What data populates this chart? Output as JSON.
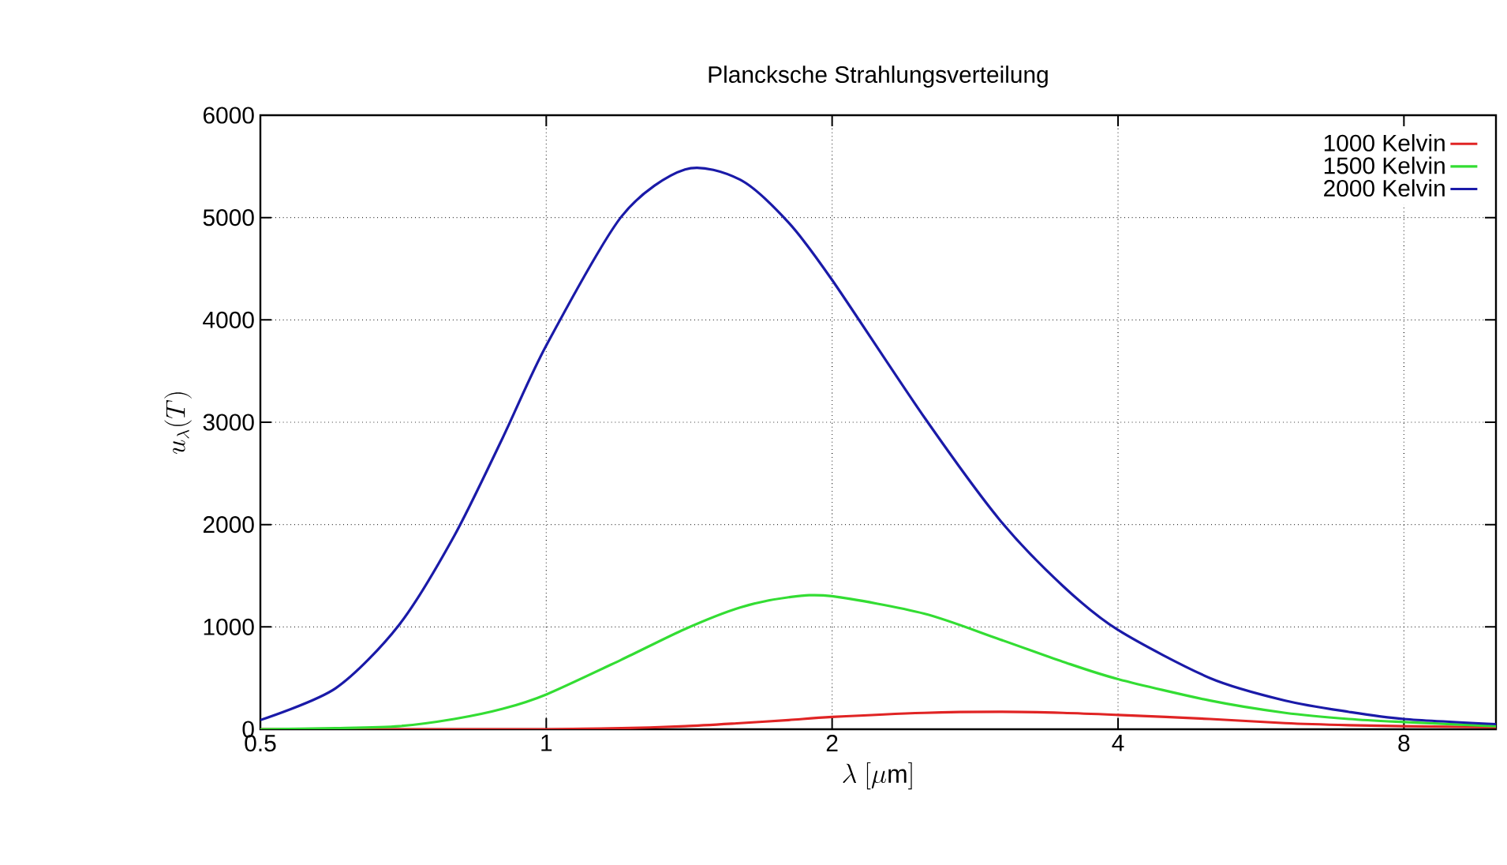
{
  "chart_data": {
    "type": "line",
    "title": "Plancksche Strahlungsverteilung",
    "xlabel": "\\lambda\\ [\\mu\\mathrm{m}]",
    "ylabel": "u_\\lambda(T)",
    "x": [
      0.5,
      0.6,
      0.7,
      0.8,
      0.9,
      1.0,
      1.2,
      1.4,
      1.6,
      1.8,
      2.0,
      2.5,
      3,
      3.5,
      4,
      5,
      6,
      7,
      8,
      10
    ],
    "series": [
      {
        "name": "1000 Kelvin",
        "color": "#e02424",
        "values": [
          0,
          0,
          0,
          0,
          0,
          0,
          10,
          30,
          60,
          90,
          120,
          160,
          170,
          160,
          140,
          100,
          60,
          40,
          30,
          20
        ]
      },
      {
        "name": "1500 Kelvin",
        "color": "#33dd33",
        "values": [
          0,
          10,
          30,
          100,
          200,
          340,
          680,
          980,
          1190,
          1290,
          1300,
          1130,
          880,
          660,
          490,
          280,
          160,
          100,
          70,
          30
        ]
      },
      {
        "name": "2000 Kelvin",
        "color": "#1a1aa8",
        "values": [
          90,
          400,
          1020,
          1890,
          2850,
          3750,
          5010,
          5470,
          5370,
          4950,
          4390,
          3050,
          2050,
          1400,
          970,
          500,
          280,
          170,
          100,
          50
        ]
      }
    ],
    "log": "x",
    "xlim": [
      0.5,
      10
    ],
    "ylim": [
      0,
      6000
    ],
    "xticks": [
      0.5,
      1,
      2,
      4,
      8
    ],
    "yticks": [
      0,
      1000,
      2000,
      3000,
      4000,
      5000,
      6000
    ],
    "grid": true,
    "legend": "top right",
    "line_style": "solid",
    "marker": "none"
  }
}
